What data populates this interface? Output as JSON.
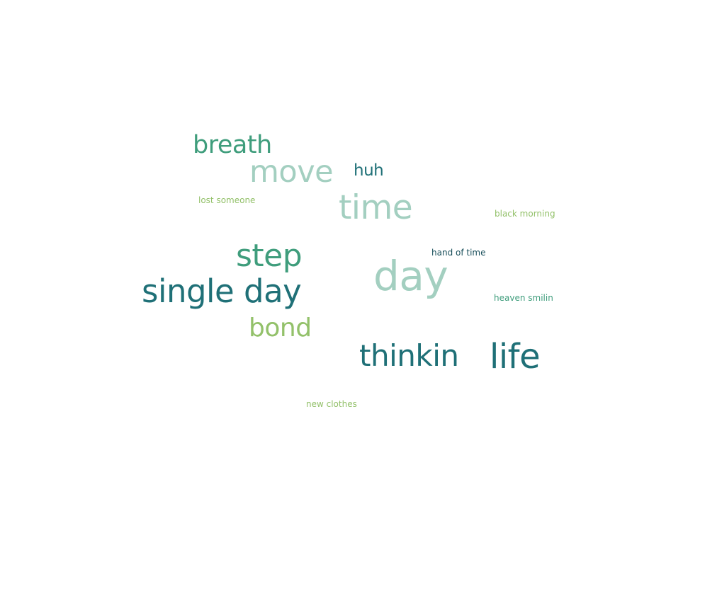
{
  "word_cloud": {
    "words": [
      {
        "text": "breath",
        "color": "#3f9d7c"
      },
      {
        "text": "move",
        "color": "#a3cfc0"
      },
      {
        "text": "huh",
        "color": "#1f7077"
      },
      {
        "text": "lost someone",
        "color": "#93c16a"
      },
      {
        "text": "time",
        "color": "#a3cfc0"
      },
      {
        "text": "black morning",
        "color": "#93c16a"
      },
      {
        "text": "step",
        "color": "#3f9d7c"
      },
      {
        "text": "hand of time",
        "color": "#184e5a"
      },
      {
        "text": "day",
        "color": "#a3cfc0"
      },
      {
        "text": "single day",
        "color": "#1f7077"
      },
      {
        "text": "heaven smilin",
        "color": "#3f9d7c"
      },
      {
        "text": "bond",
        "color": "#93c16a"
      },
      {
        "text": "thinkin",
        "color": "#1f7077"
      },
      {
        "text": "life",
        "color": "#1f7077"
      },
      {
        "text": "new clothes",
        "color": "#93c16a"
      }
    ]
  }
}
